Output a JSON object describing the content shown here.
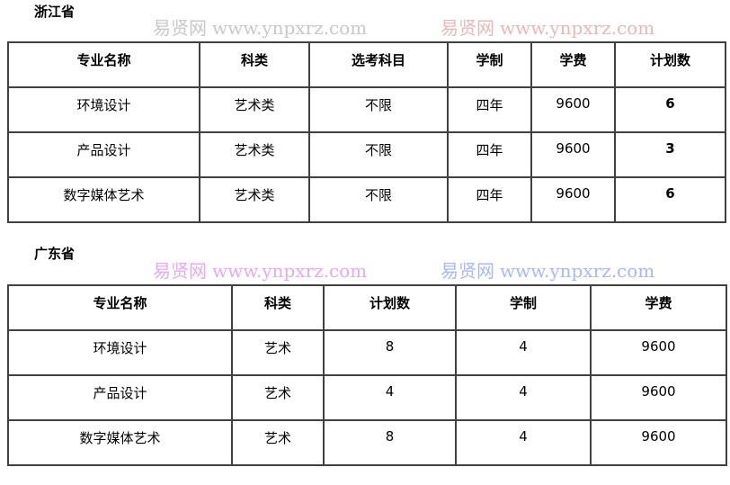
{
  "sections": [
    {
      "title": "浙江省",
      "headers": [
        "专业名称",
        "科类",
        "选考科目",
        "学制",
        "学费",
        "计划数"
      ],
      "rows": [
        [
          "环境设计",
          "艺术类",
          "不限",
          "四年",
          "9600",
          "6"
        ],
        [
          "产品设计",
          "艺术类",
          "不限",
          "四年",
          "9600",
          "3"
        ],
        [
          "数字媒体艺术",
          "艺术类",
          "不限",
          "四年",
          "9600",
          "6"
        ]
      ]
    },
    {
      "title": "广东省",
      "headers": [
        "专业名称",
        "科类",
        "计划数",
        "学制",
        "学费"
      ],
      "rows": [
        [
          "环境设计",
          "艺术",
          "8",
          "4",
          "9600"
        ],
        [
          "产品设计",
          "艺术",
          "4",
          "4",
          "9600"
        ],
        [
          "数字媒体艺术",
          "艺术",
          "8",
          "4",
          "9600"
        ]
      ]
    }
  ],
  "watermark": {
    "name": "易贤网",
    "url": "www.ynpxrz.com",
    "colors": [
      "#c8c8c8",
      "#e8b8b8",
      "#e8a8f0",
      "#a8b8f8"
    ]
  }
}
